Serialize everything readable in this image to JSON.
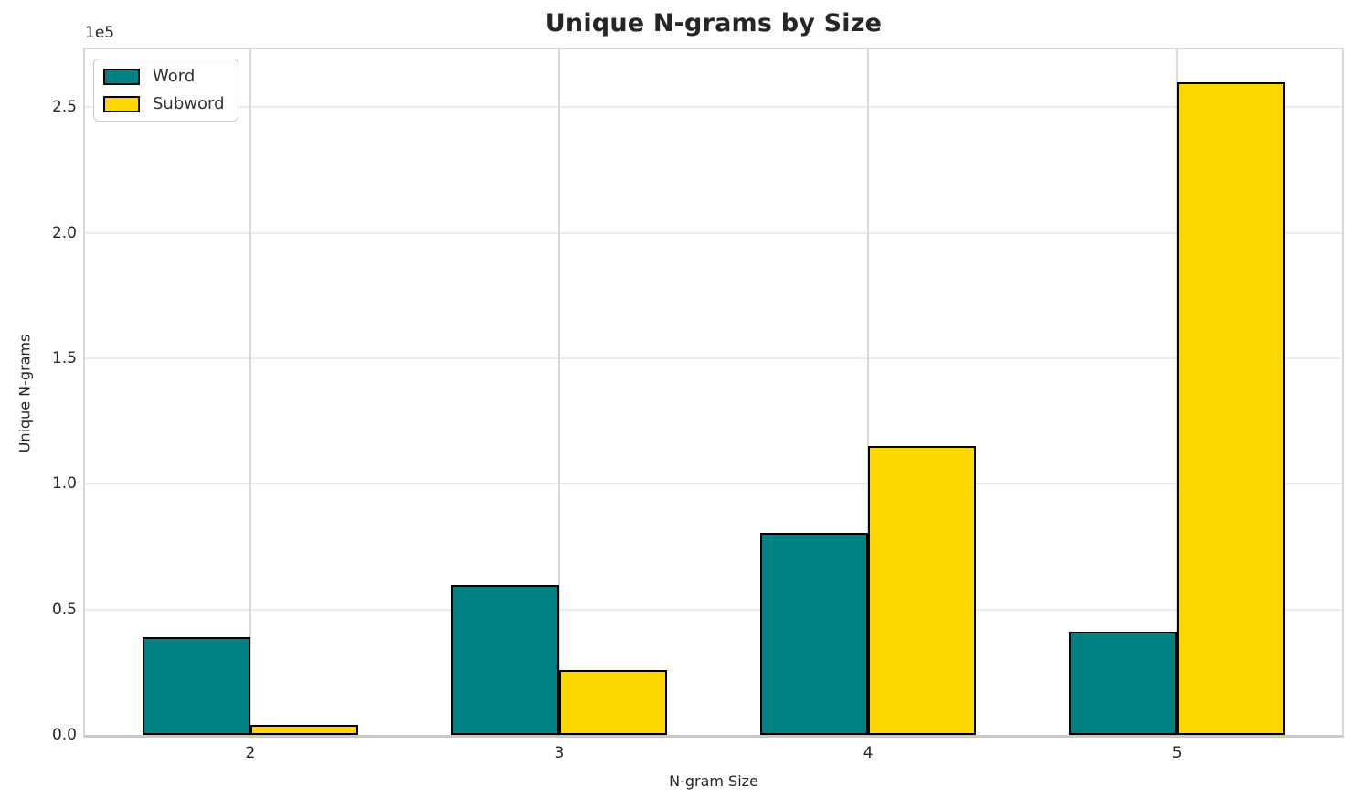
{
  "figure": {
    "title": "Unique N-grams by Size",
    "xlabel": "N-gram Size",
    "ylabel": "Unique N-grams",
    "y_offset_label": "1e5"
  },
  "legend": {
    "position": "upper left",
    "items": [
      {
        "label": "Word",
        "color": "#008080"
      },
      {
        "label": "Subword",
        "color": "#FFD700"
      }
    ]
  },
  "chart_data": {
    "type": "bar",
    "title": "Unique N-grams by Size",
    "xlabel": "N-gram Size",
    "ylabel": "Unique N-grams",
    "categories": [
      "2",
      "3",
      "4",
      "5"
    ],
    "series": [
      {
        "name": "Word",
        "color": "#008080",
        "values": [
          39000,
          59600,
          80500,
          41200
        ]
      },
      {
        "name": "Subword",
        "color": "#FFD700",
        "values": [
          4000,
          26000,
          115000,
          260000
        ]
      }
    ],
    "bar_width_units": 0.35,
    "xlim": [
      1.465,
      5.535
    ],
    "ylim": [
      0,
      273000
    ],
    "yticks": [
      0,
      50000,
      100000,
      150000,
      200000,
      250000
    ],
    "ytick_labels": [
      "0.0",
      "0.5",
      "1.0",
      "1.5",
      "2.0",
      "2.5"
    ],
    "y_offset_label": "1e5",
    "grid": true,
    "legend_position": "upper left",
    "bar_edge_color": "#000000",
    "style_colors": {
      "grid_horizontal": "#ebebeb",
      "grid_vertical": "#d9d9d9",
      "spine": "#d9d9d9",
      "text": "#262626",
      "background": "#ffffff"
    }
  }
}
